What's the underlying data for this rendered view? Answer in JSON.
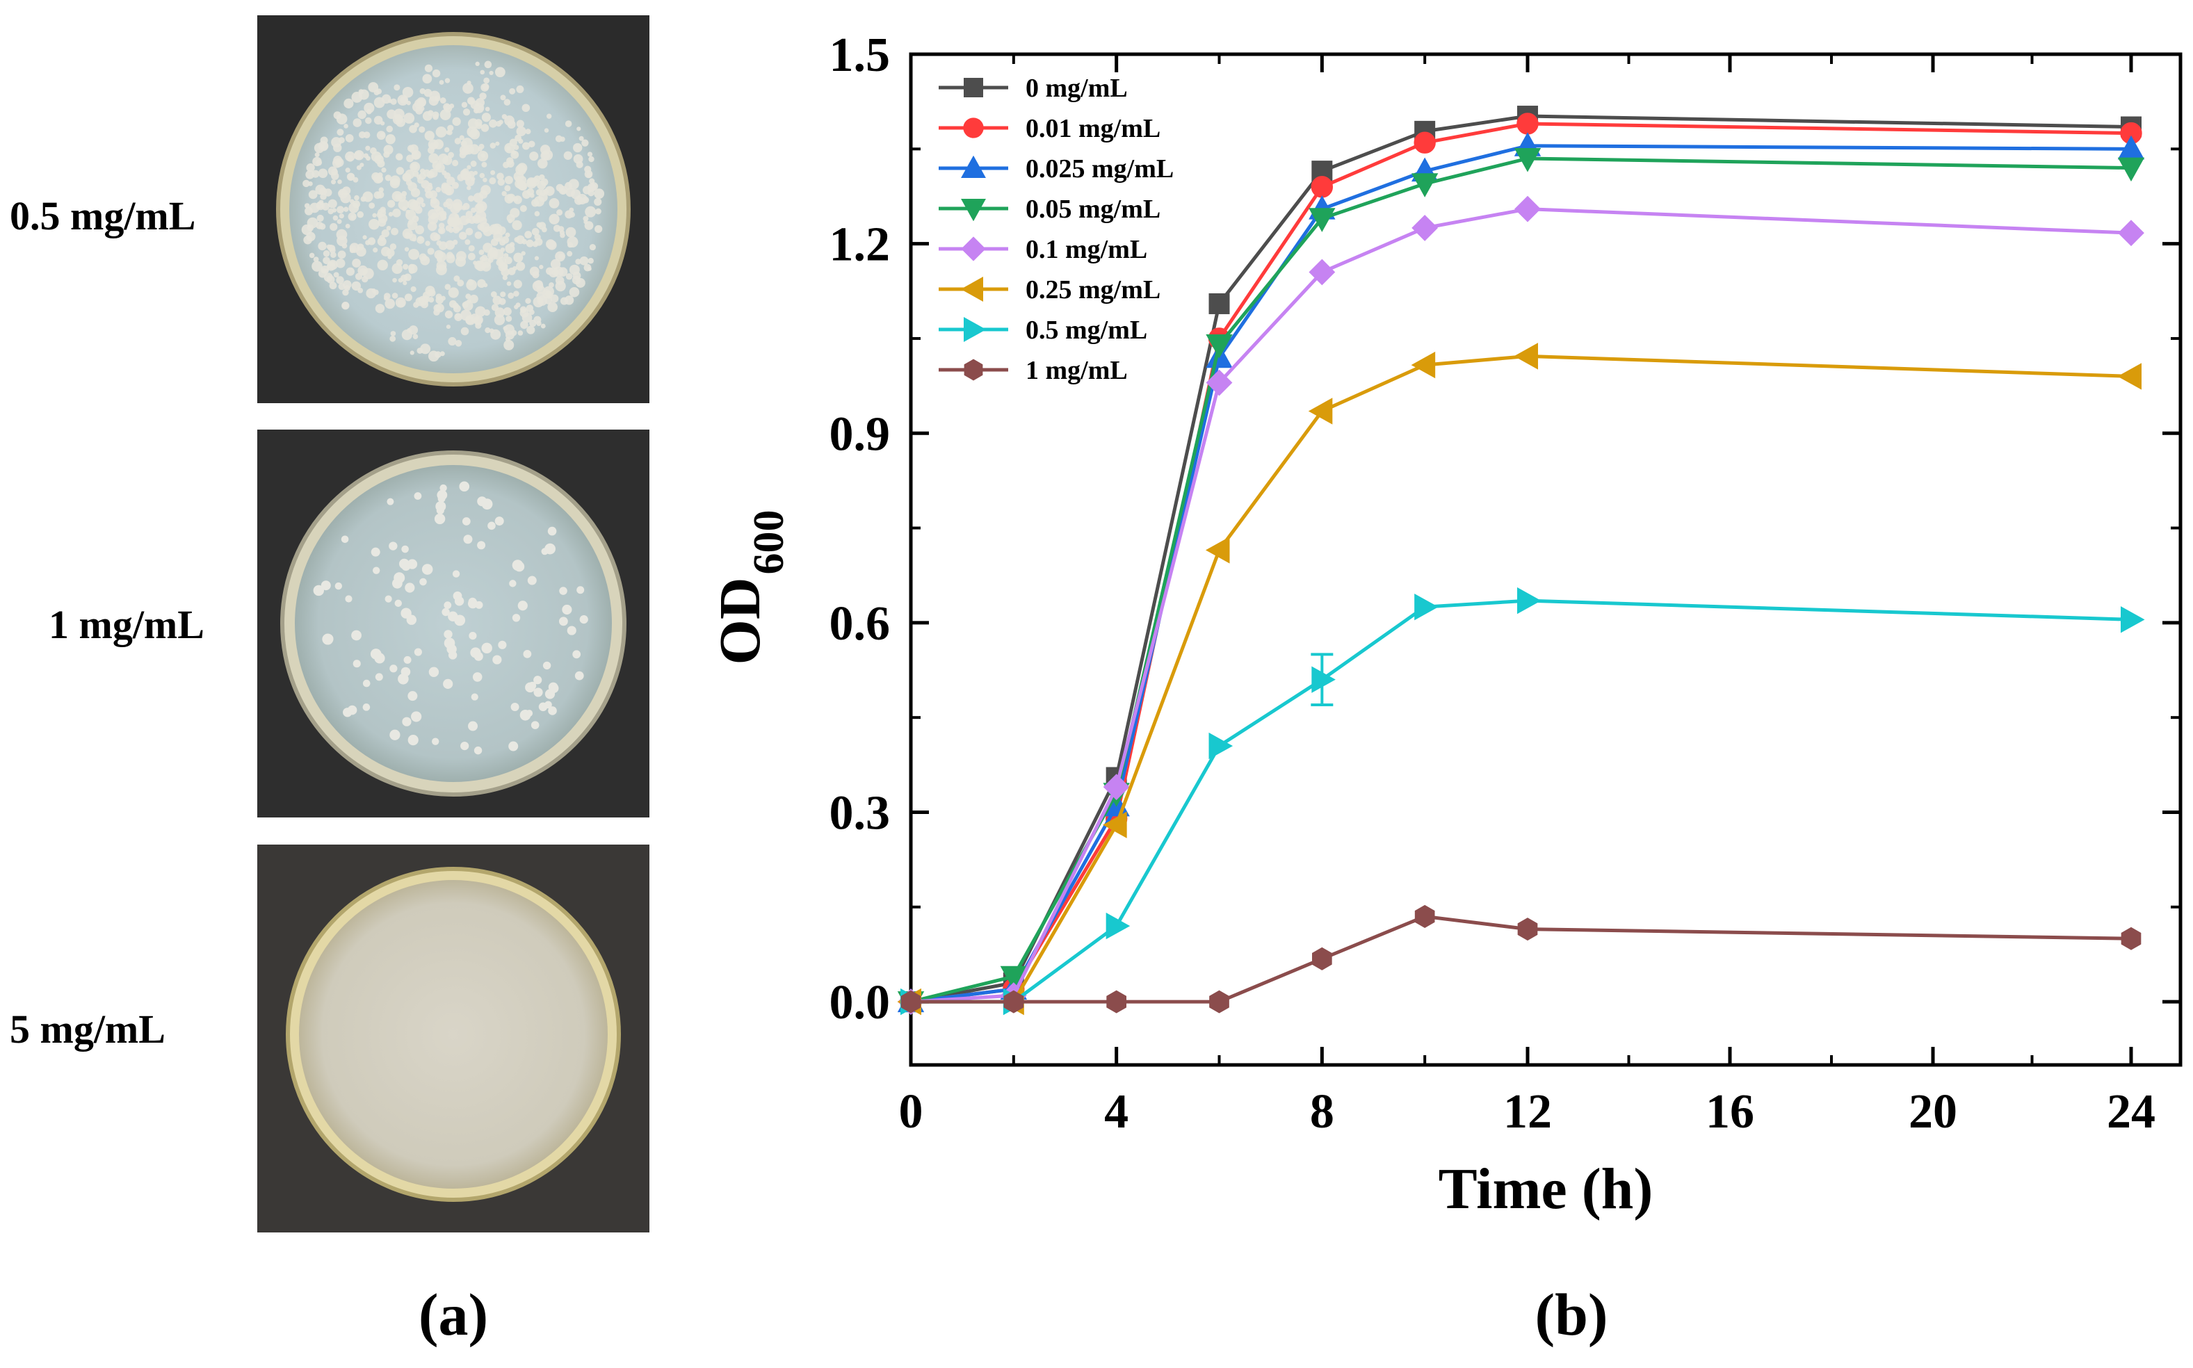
{
  "panel_a": {
    "label": "(a)",
    "dishes": [
      {
        "label": "0.5 mg/mL",
        "colony_density": "dense"
      },
      {
        "label": "1 mg/mL",
        "colony_density": "sparse"
      },
      {
        "label": "5 mg/mL",
        "colony_density": "none"
      }
    ]
  },
  "panel_b": {
    "label": "(b)"
  },
  "colors": {
    "0 mg/mL": "#4d4d4d",
    "0.01 mg/mL": "#ff3b3b",
    "0.025 mg/mL": "#1f6fe0",
    "0.05 mg/mL": "#1fa35a",
    "0.1 mg/mL": "#c683f2",
    "0.25 mg/mL": "#d99b0a",
    "0.5 mg/mL": "#18c8cf",
    "1 mg/mL": "#8b4c4c"
  },
  "chart_data": {
    "type": "line",
    "xlabel": "Time (h)",
    "ylabel_main": "OD",
    "ylabel_sub": "600",
    "ylim": [
      -0.1,
      1.5
    ],
    "x_ticks": [
      "0",
      "4",
      "8",
      "12",
      "16",
      "20",
      "24"
    ],
    "y_ticks": [
      "0.0",
      "0.3",
      "0.6",
      "0.9",
      "1.2",
      "1.5"
    ],
    "x_tick_values": [
      0,
      4,
      8,
      12,
      16,
      20,
      24
    ],
    "y_tick_values": [
      0,
      0.3,
      0.6,
      0.9,
      1.2,
      1.5
    ],
    "x": [
      0,
      2,
      4,
      6,
      8,
      10,
      12,
      24
    ],
    "legend_position": "top-left",
    "series": [
      {
        "name": "0 mg/mL",
        "marker": "square",
        "values": [
          0.0,
          0.03,
          0.355,
          1.105,
          1.315,
          1.378,
          1.402,
          1.385
        ]
      },
      {
        "name": "0.01 mg/mL",
        "marker": "circle",
        "values": [
          0.0,
          0.02,
          0.29,
          1.05,
          1.29,
          1.36,
          1.39,
          1.375
        ]
      },
      {
        "name": "0.025 mg/mL",
        "marker": "triangle-up",
        "values": [
          0.0,
          0.02,
          0.31,
          1.02,
          1.255,
          1.315,
          1.355,
          1.35
        ]
      },
      {
        "name": "0.05 mg/mL",
        "marker": "triangle-down",
        "values": [
          0.0,
          0.04,
          0.33,
          1.04,
          1.24,
          1.295,
          1.335,
          1.32
        ]
      },
      {
        "name": "0.1 mg/mL",
        "marker": "diamond",
        "values": [
          0.0,
          0.01,
          0.34,
          0.98,
          1.155,
          1.225,
          1.255,
          1.217
        ]
      },
      {
        "name": "0.25 mg/mL",
        "marker": "triangle-left",
        "values": [
          0.0,
          0.0,
          0.28,
          0.715,
          0.935,
          1.008,
          1.022,
          0.99
        ]
      },
      {
        "name": "0.5 mg/mL",
        "marker": "triangle-right",
        "values": [
          0.0,
          0.0,
          0.12,
          0.405,
          0.51,
          0.625,
          0.635,
          0.605
        ]
      },
      {
        "name": "1 mg/mL",
        "marker": "hexagon",
        "values": [
          0.0,
          0.0,
          0.0,
          0.0,
          0.068,
          0.135,
          0.115,
          0.1
        ]
      }
    ],
    "error_bars": [
      {
        "series": "0.5 mg/mL",
        "x": 8,
        "low": 0.47,
        "high": 0.55
      }
    ]
  }
}
